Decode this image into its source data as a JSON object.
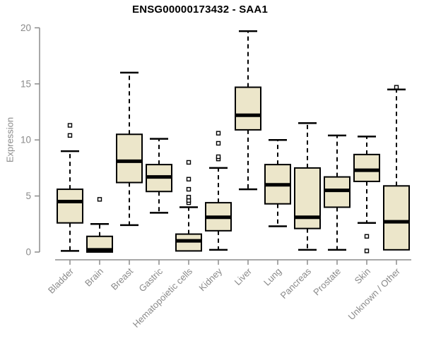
{
  "chart_data": {
    "type": "boxplot",
    "title": "ENSG00000173432 - SAA1",
    "ylabel": "Expression",
    "xlabel": "",
    "ylim": [
      0,
      20
    ],
    "yticks": [
      0,
      5,
      10,
      15,
      20
    ],
    "grid": false,
    "legend": "none",
    "colors": {
      "box_fill": "#ECE6CA",
      "line": "#000000",
      "axis": "#8c8c8c",
      "text": "#8a8a8a",
      "title": "#000000",
      "background": "#ffffff"
    },
    "series": [
      {
        "id": "bladder",
        "category": "Bladder",
        "whisker_low": 0.1,
        "q1": 2.6,
        "median": 4.5,
        "q3": 5.6,
        "whisker_high": 9.0,
        "outliers": [
          10.4,
          11.3
        ]
      },
      {
        "id": "brain",
        "category": "Brain",
        "whisker_low": 0.0,
        "q1": 0.0,
        "median": 0.2,
        "q3": 1.4,
        "whisker_high": 2.5,
        "outliers": [
          4.7
        ]
      },
      {
        "id": "breast",
        "category": "Breast",
        "whisker_low": 2.4,
        "q1": 6.2,
        "median": 8.1,
        "q3": 10.5,
        "whisker_high": 16.0,
        "outliers": []
      },
      {
        "id": "gastric",
        "category": "Gastric",
        "whisker_low": 3.5,
        "q1": 5.4,
        "median": 6.7,
        "q3": 7.8,
        "whisker_high": 10.1,
        "outliers": []
      },
      {
        "id": "hematopoietic-cells",
        "category": "Hematopoietic cells",
        "whisker_low": 0.1,
        "q1": 0.1,
        "median": 1.0,
        "q3": 1.6,
        "whisker_high": 4.0,
        "outliers": [
          4.4,
          4.6,
          4.9,
          5.6,
          6.5,
          8.0
        ]
      },
      {
        "id": "kidney",
        "category": "Kidney",
        "whisker_low": 0.2,
        "q1": 1.9,
        "median": 3.1,
        "q3": 4.4,
        "whisker_high": 7.5,
        "outliers": [
          8.3,
          8.5,
          9.7,
          10.6
        ]
      },
      {
        "id": "liver",
        "category": "Liver",
        "whisker_low": 5.6,
        "q1": 10.9,
        "median": 12.2,
        "q3": 14.7,
        "whisker_high": 19.7,
        "outliers": []
      },
      {
        "id": "lung",
        "category": "Lung",
        "whisker_low": 2.3,
        "q1": 4.3,
        "median": 6.0,
        "q3": 7.8,
        "whisker_high": 10.0,
        "outliers": []
      },
      {
        "id": "pancreas",
        "category": "Pancreas",
        "whisker_low": 0.2,
        "q1": 2.1,
        "median": 3.1,
        "q3": 7.5,
        "whisker_high": 11.5,
        "outliers": []
      },
      {
        "id": "prostate",
        "category": "Prostate",
        "whisker_low": 0.2,
        "q1": 4.0,
        "median": 5.5,
        "q3": 6.7,
        "whisker_high": 10.4,
        "outliers": []
      },
      {
        "id": "skin",
        "category": "Skin",
        "whisker_low": 2.6,
        "q1": 6.3,
        "median": 7.3,
        "q3": 8.7,
        "whisker_high": 10.3,
        "outliers": [
          1.4,
          0.1
        ]
      },
      {
        "id": "unknown-other",
        "category": "Unknown / Other",
        "whisker_low": 0.2,
        "q1": 0.2,
        "median": 2.7,
        "q3": 5.9,
        "whisker_high": 14.5,
        "outliers": [
          14.7
        ]
      }
    ]
  }
}
